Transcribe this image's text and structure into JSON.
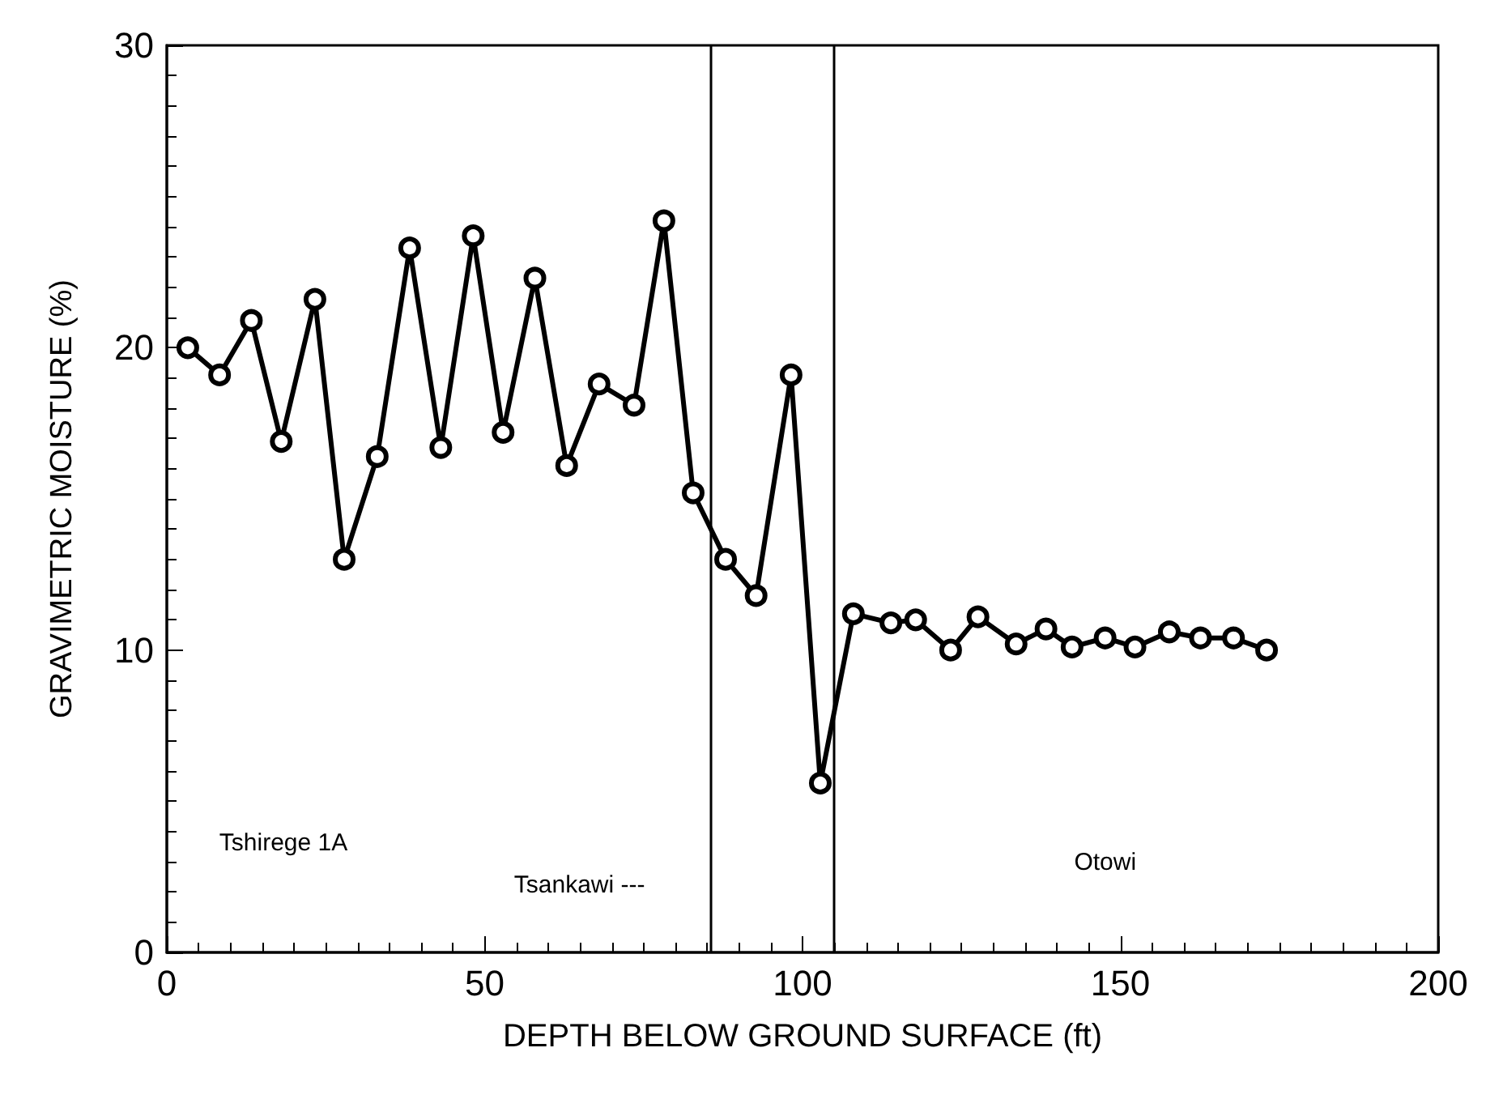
{
  "chart_data": {
    "type": "line",
    "xlabel": "DEPTH BELOW GROUND SURFACE (ft)",
    "ylabel": "GRAVIMETRIC MOISTURE (%)",
    "x": [
      3.3,
      8.3,
      13.3,
      18,
      23.3,
      27.9,
      33.1,
      38.2,
      43.1,
      48.2,
      52.9,
      57.9,
      62.9,
      68,
      73.5,
      78.2,
      82.8,
      87.9,
      92.7,
      98.2,
      102.8,
      108,
      113.9,
      117.8,
      123.3,
      127.6,
      133.6,
      138.3,
      142.4,
      147.6,
      152.3,
      157.7,
      162.6,
      167.8,
      173
    ],
    "values": [
      20.0,
      19.1,
      20.9,
      16.9,
      21.6,
      13.0,
      16.4,
      23.3,
      16.7,
      23.7,
      17.2,
      22.3,
      16.1,
      18.8,
      18.1,
      24.2,
      15.2,
      13.0,
      11.8,
      19.1,
      5.6,
      11.2,
      10.9,
      11.0,
      10.0,
      11.1,
      10.2,
      10.7,
      10.1,
      10.4,
      10.1,
      10.6,
      10.4,
      10.4,
      10.0
    ],
    "color": "#000000",
    "marker": "circle",
    "line_style": "solid",
    "grid": false,
    "xlim": [
      0,
      200
    ],
    "xticks": [
      0,
      50,
      100,
      150,
      200
    ],
    "ylim": [
      0,
      30
    ],
    "yticks": [
      0,
      10,
      20,
      30
    ],
    "ref_lines": [
      {
        "axis": "x",
        "value": 85.5
      },
      {
        "axis": "x",
        "value": 105
      }
    ],
    "annotations": [
      "Tshirege 1A",
      "Tsankawi ---",
      "Otowi"
    ]
  }
}
